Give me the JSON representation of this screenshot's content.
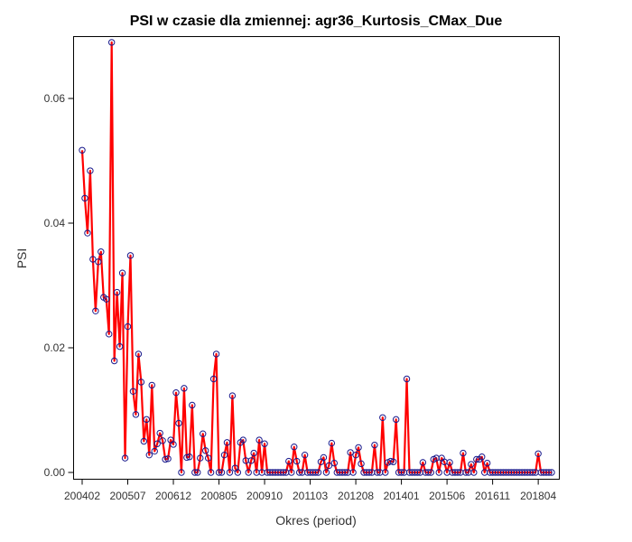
{
  "chart_data": {
    "type": "line",
    "title": "PSI w czasie dla zmiennej: agr36_Kurtosis_CMax_Due",
    "xlabel": "Okres (period)",
    "ylabel": "PSI",
    "ylim": [
      -0.0023,
      0.0697
    ],
    "yticks": [
      0.0,
      0.02,
      0.04,
      0.06
    ],
    "ytick_labels": [
      "0.00",
      "0.02",
      "0.04",
      "0.06"
    ],
    "xticks": [
      "200402",
      "200507",
      "200612",
      "200805",
      "200910",
      "201103",
      "201208",
      "201401",
      "201506",
      "201611",
      "201804"
    ],
    "x_start": "200402",
    "x_frequency": "monthly",
    "grid": false,
    "legend": false,
    "series_color": "#ff0000",
    "marker_color": "#1a1a8c",
    "series": [
      {
        "values": [
          0.0517,
          0.044,
          0.0384,
          0.0484,
          0.0342,
          0.0259,
          0.0338,
          0.0354,
          0.0281,
          0.0278,
          0.0222,
          0.069,
          0.0179,
          0.0289,
          0.0202,
          0.032,
          0.0023,
          0.0234,
          0.0348,
          0.013,
          0.0093,
          0.019,
          0.0145,
          0.005,
          0.0085,
          0.0028,
          0.014,
          0.0034,
          0.0046,
          0.0063,
          0.0051,
          0.0021,
          0.0022,
          0.0052,
          0.0045,
          0.0128,
          0.0079,
          0.0,
          0.0135,
          0.0024,
          0.0025,
          0.0108,
          0.0,
          0.0,
          0.0023,
          0.0062,
          0.0035,
          0.0023,
          0.0,
          0.015,
          0.019,
          0.0,
          0.0,
          0.0028,
          0.0048,
          0.0,
          0.0123,
          0.0007,
          0.0,
          0.0048,
          0.0052,
          0.0019,
          0.0,
          0.0019,
          0.0031,
          0.0,
          0.0052,
          0.0,
          0.0046,
          0.0,
          0.0,
          0.0,
          0.0,
          0.0,
          0.0,
          0.0,
          0.0,
          0.0018,
          0.0,
          0.0041,
          0.0018,
          0.0,
          0.0,
          0.0028,
          0.0,
          0.0,
          0.0,
          0.0,
          0.0,
          0.0017,
          0.0024,
          0.0,
          0.0011,
          0.0047,
          0.0015,
          0.0,
          0.0,
          0.0,
          0.0,
          0.0,
          0.0032,
          0.0,
          0.0028,
          0.004,
          0.0014,
          0.0,
          0.0,
          0.0,
          0.0,
          0.0044,
          0.0,
          0.0,
          0.0088,
          0.0,
          0.0016,
          0.0018,
          0.0017,
          0.0085,
          0.0,
          0.0,
          0.0,
          0.015,
          0.0,
          0.0,
          0.0,
          0.0,
          0.0,
          0.0016,
          0.0,
          0.0,
          0.0,
          0.0021,
          0.0023,
          0.0,
          0.0023,
          0.0017,
          0.0,
          0.0016,
          0.0,
          0.0,
          0.0,
          0.0,
          0.0031,
          0.0,
          0.0,
          0.0013,
          0.0,
          0.0021,
          0.0021,
          0.0025,
          0.0,
          0.0015,
          0.0,
          0.0,
          0.0,
          0.0,
          0.0,
          0.0,
          0.0,
          0.0,
          0.0,
          0.0,
          0.0,
          0.0,
          0.0,
          0.0,
          0.0,
          0.0,
          0.0,
          0.0,
          0.003,
          0.0,
          0.0,
          0.0,
          0.0,
          0.0
        ]
      }
    ]
  }
}
